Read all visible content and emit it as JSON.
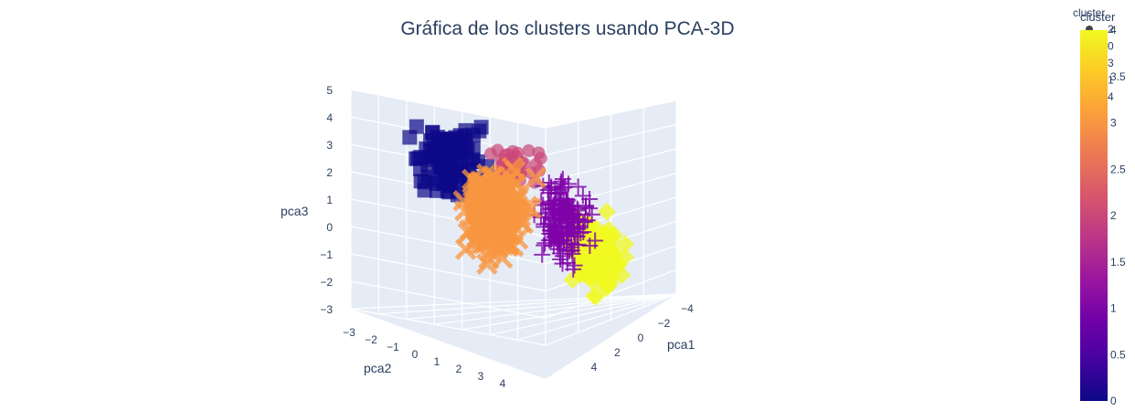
{
  "chart_data": {
    "type": "scatter",
    "title": "Gráfica de los clusters usando PCA-3D",
    "axes": {
      "x": {
        "label": "pca1",
        "ticks": [
          "−4",
          "−2",
          "0",
          "2",
          "4"
        ]
      },
      "y": {
        "label": "pca2",
        "ticks": [
          "−3",
          "−2",
          "−1",
          "0",
          "1",
          "2",
          "3",
          "4"
        ]
      },
      "z": {
        "label": "pca3",
        "ticks": [
          "5",
          "4",
          "3",
          "2",
          "1",
          "0",
          "−1",
          "−2",
          "−3"
        ],
        "range": [
          -3,
          5
        ]
      }
    },
    "colorbar": {
      "title": "cluster",
      "range": [
        0,
        4
      ],
      "ticks": [
        "4",
        "3.5",
        "3",
        "2.5",
        "2",
        "1.5",
        "1",
        "0.5",
        "0"
      ],
      "colors": [
        "#0d0887",
        "#46039f",
        "#7201a8",
        "#9c179e",
        "#bd3786",
        "#d8576b",
        "#ed7953",
        "#fb9f3a",
        "#fdca26",
        "#f0f921"
      ]
    },
    "legend": {
      "title": "cluster",
      "entries": [
        "2",
        "0",
        "3",
        "1",
        "4"
      ]
    },
    "series": [
      {
        "name": "0",
        "symbol": "square",
        "color": "#0d0887",
        "center": [
          -1.8,
          -1.5,
          2.5
        ],
        "spread": [
          0.8,
          0.8,
          0.9
        ],
        "count": 110
      },
      {
        "name": "1",
        "symbol": "cross",
        "color": "#7e03a8",
        "center": [
          1.8,
          1.0,
          0.7
        ],
        "spread": [
          0.7,
          0.6,
          1.0
        ],
        "count": 170
      },
      {
        "name": "2",
        "symbol": "circle",
        "color": "#cc4778",
        "center": [
          -1.0,
          1.5,
          2.2
        ],
        "spread": [
          0.6,
          0.6,
          0.6
        ],
        "count": 40
      },
      {
        "name": "3",
        "symbol": "x",
        "color": "#f89540",
        "center": [
          0.0,
          -1.0,
          0.7
        ],
        "spread": [
          0.7,
          0.7,
          1.1
        ],
        "count": 240
      },
      {
        "name": "4",
        "symbol": "diamond",
        "color": "#f0f921",
        "center": [
          3.0,
          1.5,
          -0.5
        ],
        "spread": [
          0.7,
          0.7,
          0.9
        ],
        "count": 130
      }
    ]
  }
}
